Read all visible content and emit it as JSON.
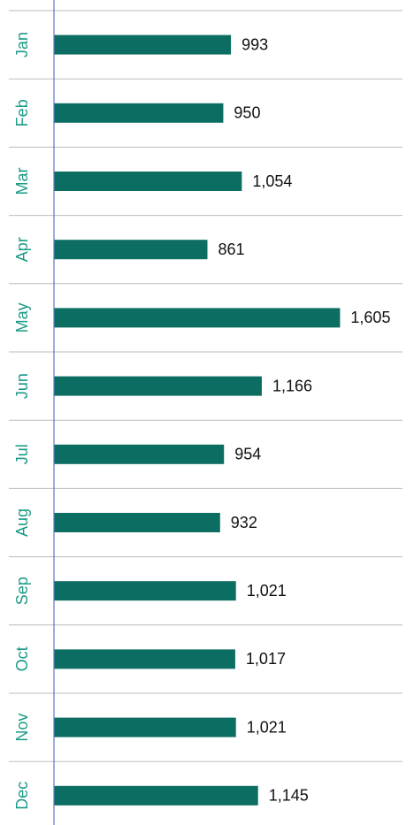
{
  "chart_data": {
    "type": "bar",
    "orientation": "horizontal",
    "categories": [
      "Jan",
      "Feb",
      "Mar",
      "Apr",
      "May",
      "Jun",
      "Jul",
      "Aug",
      "Sep",
      "Oct",
      "Nov",
      "Dec"
    ],
    "values": [
      993,
      950,
      1054,
      861,
      1605,
      1166,
      954,
      932,
      1021,
      1017,
      1021,
      1145
    ],
    "value_labels": [
      "993",
      "950",
      "1,054",
      "861",
      "1,605",
      "1,166",
      "954",
      "932",
      "1,021",
      "1,017",
      "1,021",
      "1,145"
    ],
    "color": "#0c6e63",
    "xlim": [
      0,
      2000
    ]
  }
}
